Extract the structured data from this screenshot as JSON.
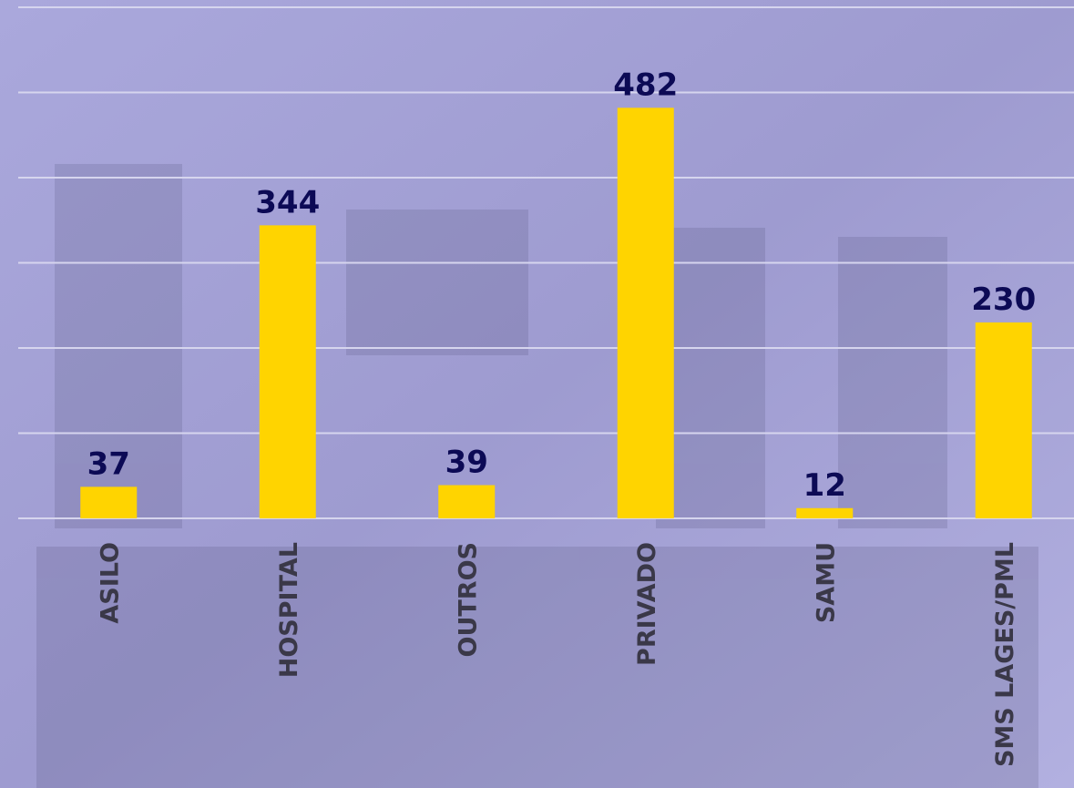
{
  "chart_data": {
    "type": "bar",
    "categories": [
      "ASILO",
      "HOSPITAL",
      "OUTROS",
      "PRIVADO",
      "SAMU",
      "SMS LAGES/PML"
    ],
    "values": [
      37,
      344,
      39,
      482,
      12,
      230
    ],
    "color": "#ffd400",
    "ylim": [
      0,
      600
    ],
    "yticks": [
      0,
      100,
      200,
      300,
      400,
      500,
      600
    ],
    "grid": true
  }
}
